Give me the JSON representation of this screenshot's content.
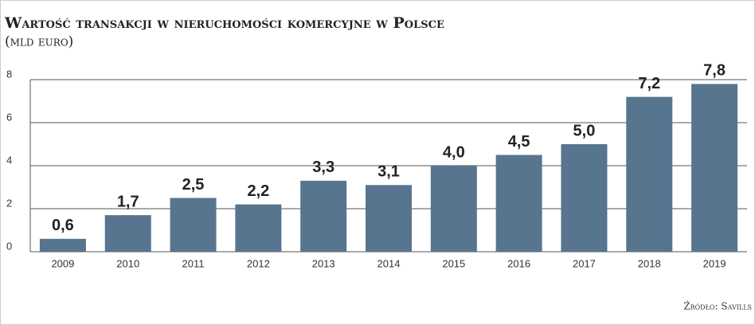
{
  "chart_data": {
    "type": "bar",
    "title": "Wartość transakcji w nieruchomości komercyjne w Polsce",
    "subtitle": "(mld euro)",
    "source": "Źródło: Savills",
    "categories": [
      "2009",
      "2010",
      "2011",
      "2012",
      "2013",
      "2014",
      "2015",
      "2016",
      "2017",
      "2018",
      "2019"
    ],
    "values": [
      0.6,
      1.7,
      2.5,
      2.2,
      3.3,
      3.1,
      4.0,
      4.5,
      5.0,
      7.2,
      7.8
    ],
    "value_labels": [
      "0,6",
      "1,7",
      "2,5",
      "2,2",
      "3,3",
      "3,1",
      "4,0",
      "4,5",
      "5,0",
      "7,2",
      "7,8"
    ],
    "color": "#587590",
    "ylim": [
      0,
      8
    ],
    "yticks": [
      0,
      2,
      4,
      6,
      8
    ],
    "grid": true
  }
}
